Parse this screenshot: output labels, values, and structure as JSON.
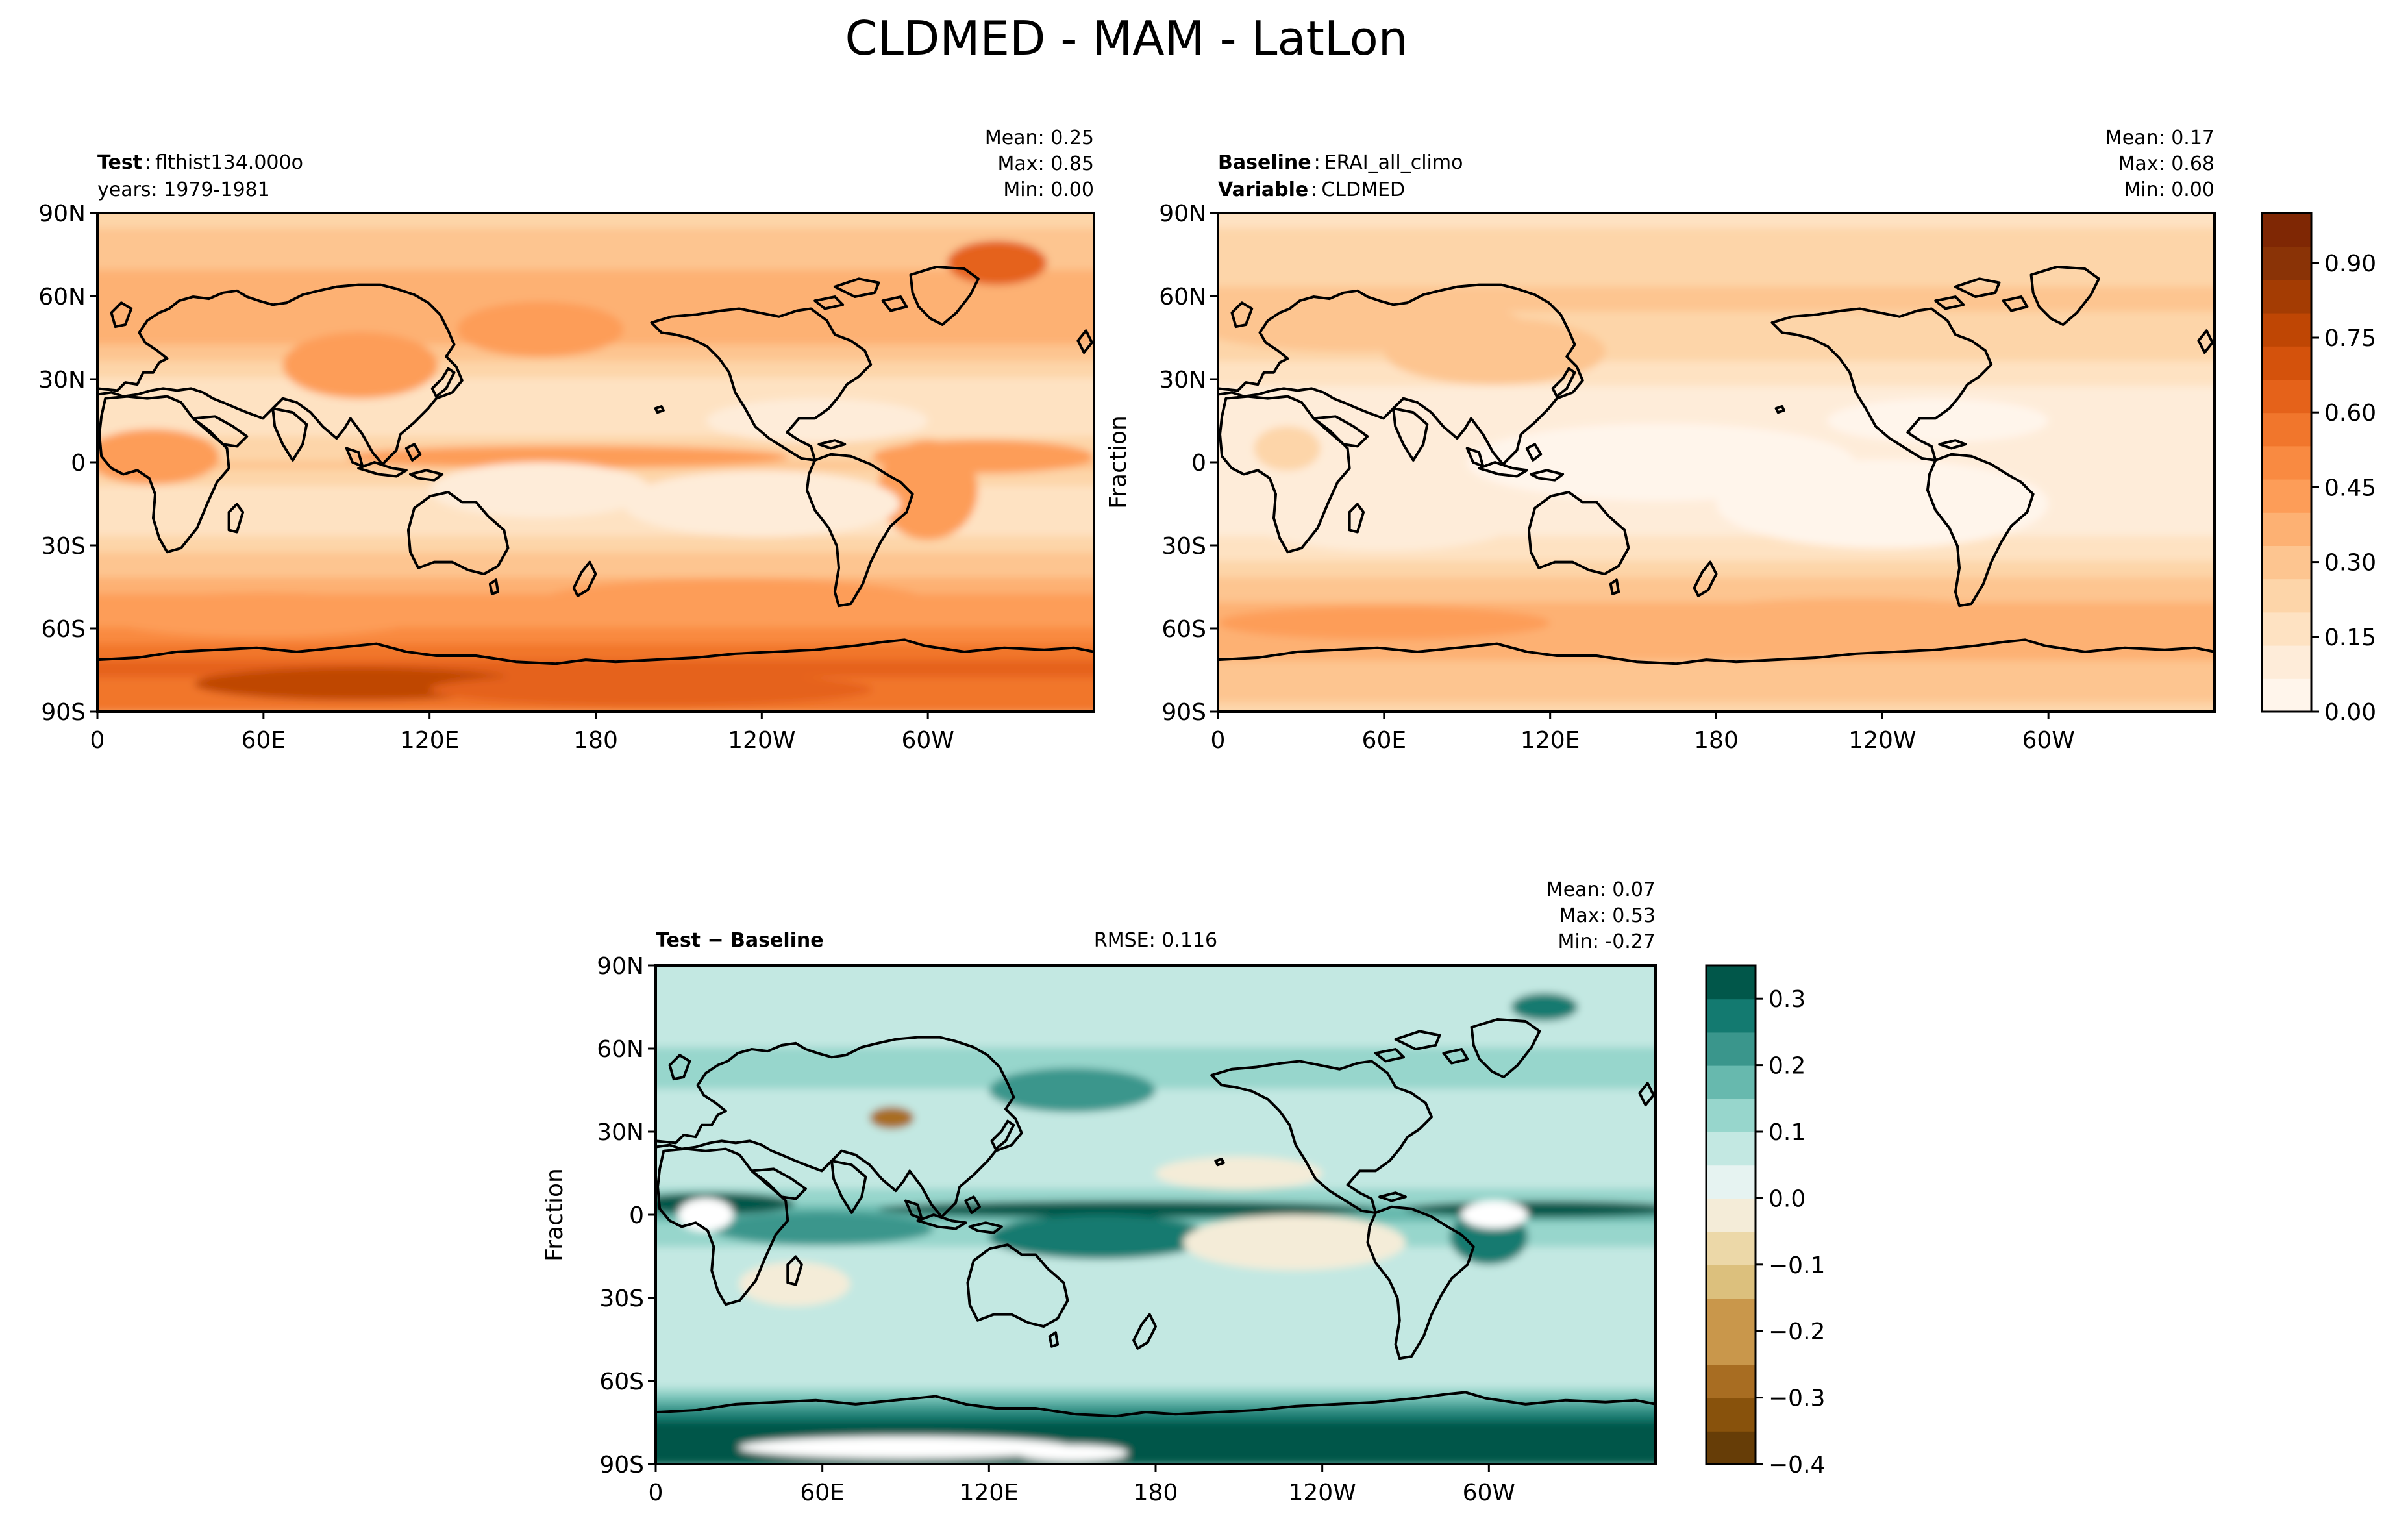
{
  "suptitle": "CLDMED - MAM - LatLon",
  "panels": [
    {
      "id": "test",
      "labels": {
        "l1_bold": "Test",
        "l1_rest": "flthist134.000o",
        "l2_bold": "",
        "l2_rest": "years: 1979-1981"
      },
      "stats": {
        "mean": "Mean:  0.25",
        "max": "Max:  0.85",
        "min": "Min:  0.00"
      },
      "rmse": "",
      "ylabel": ""
    },
    {
      "id": "baseline",
      "labels": {
        "l1_bold": "Baseline",
        "l1_rest": "ERAI_all_climo",
        "l2_bold": "Variable",
        "l2_rest": "CLDMED"
      },
      "stats": {
        "mean": "Mean:  0.17",
        "max": "Max:  0.68",
        "min": "Min:  0.00"
      },
      "rmse": "",
      "ylabel": "Fraction"
    },
    {
      "id": "diff",
      "labels": {
        "l1_bold": "Test − Baseline",
        "l1_rest": "",
        "l2_bold": "",
        "l2_rest": ""
      },
      "stats": {
        "mean": "Mean:  0.07",
        "max": "Max:  0.53",
        "min": "Min: -0.27"
      },
      "rmse": "RMSE: 0.116",
      "ylabel": "Fraction"
    }
  ],
  "colors": {
    "oranges": [
      "#fff5eb",
      "#feecd9",
      "#fee2c2",
      "#fdd5a9",
      "#fdc590",
      "#fdb173",
      "#fd9d58",
      "#f98a41",
      "#f1762c",
      "#e5621a",
      "#d4520c",
      "#bf4604",
      "#a43c03",
      "#8a3306",
      "#7f2704"
    ],
    "brbg_pos": [
      "#e6f3f1",
      "#c3e8e2",
      "#97d6cc",
      "#67b9ae",
      "#3a968c",
      "#137a70",
      "#01574a"
    ],
    "brbg_neg": [
      "#f4ecd8",
      "#ecd8a8",
      "#dcc07d",
      "#c9974b",
      "#a86d22",
      "#88520c",
      "#663d07"
    ],
    "land_line": "#000000"
  },
  "chart_data": [
    {
      "type": "heatmap",
      "title": "Test: flthist134.000o, years: 1979-1981",
      "variable": "CLDMED",
      "x_ticks": [
        "0",
        "60E",
        "120E",
        "180",
        "120W",
        "60W"
      ],
      "y_ticks": [
        "90N",
        "60N",
        "30N",
        "0",
        "30S",
        "60S",
        "90S"
      ],
      "xlim": [
        0,
        360
      ],
      "ylim": [
        -90,
        90
      ],
      "zonal_mean_profile": {
        "lat": [
          -90,
          -75,
          -60,
          -45,
          -30,
          -15,
          0,
          15,
          30,
          45,
          60,
          75,
          90
        ],
        "value": [
          0.55,
          0.62,
          0.45,
          0.38,
          0.22,
          0.15,
          0.28,
          0.14,
          0.2,
          0.35,
          0.38,
          0.3,
          0.25
        ]
      },
      "mean": 0.25,
      "max": 0.85,
      "min": 0.0
    },
    {
      "type": "heatmap",
      "title": "Baseline: ERAI_all_climo, Variable: CLDMED",
      "variable": "CLDMED",
      "x_ticks": [
        "0",
        "60E",
        "120E",
        "180",
        "120W",
        "60W"
      ],
      "y_ticks": [
        "90N",
        "60N",
        "30N",
        "0",
        "30S",
        "60S",
        "90S"
      ],
      "ylabel": "Fraction",
      "xlim": [
        0,
        360
      ],
      "ylim": [
        -90,
        90
      ],
      "zonal_mean_profile": {
        "lat": [
          -90,
          -75,
          -60,
          -45,
          -30,
          -15,
          0,
          15,
          30,
          45,
          60,
          75,
          90
        ],
        "value": [
          0.25,
          0.32,
          0.38,
          0.3,
          0.14,
          0.08,
          0.1,
          0.08,
          0.15,
          0.25,
          0.28,
          0.22,
          0.18
        ]
      },
      "colorbar": {
        "ticks": [
          "0.00",
          "0.15",
          "0.30",
          "0.45",
          "0.60",
          "0.75",
          "0.90"
        ],
        "range": [
          0.0,
          1.0
        ]
      },
      "mean": 0.17,
      "max": 0.68,
      "min": 0.0
    },
    {
      "type": "heatmap",
      "title": "Test − Baseline",
      "variable": "CLDMED difference",
      "x_ticks": [
        "0",
        "60E",
        "120E",
        "180",
        "120W",
        "60W"
      ],
      "y_ticks": [
        "90N",
        "60N",
        "30N",
        "0",
        "30S",
        "60S",
        "90S"
      ],
      "ylabel": "Fraction",
      "xlim": [
        0,
        360
      ],
      "ylim": [
        -90,
        90
      ],
      "zonal_mean_profile": {
        "lat": [
          -90,
          -75,
          -60,
          -45,
          -30,
          -15,
          0,
          15,
          30,
          45,
          60,
          75,
          90
        ],
        "value": [
          0.3,
          0.3,
          0.07,
          0.08,
          0.08,
          0.07,
          0.18,
          0.06,
          0.05,
          0.1,
          0.1,
          0.08,
          0.07
        ]
      },
      "colorbar": {
        "ticks": [
          "0.3",
          "0.2",
          "0.1",
          "0.0",
          "−0.1",
          "−0.2",
          "−0.3",
          "−0.4"
        ],
        "range": [
          -0.4,
          0.35
        ]
      },
      "rmse": 0.116,
      "mean": 0.07,
      "max": 0.53,
      "min": -0.27
    }
  ]
}
